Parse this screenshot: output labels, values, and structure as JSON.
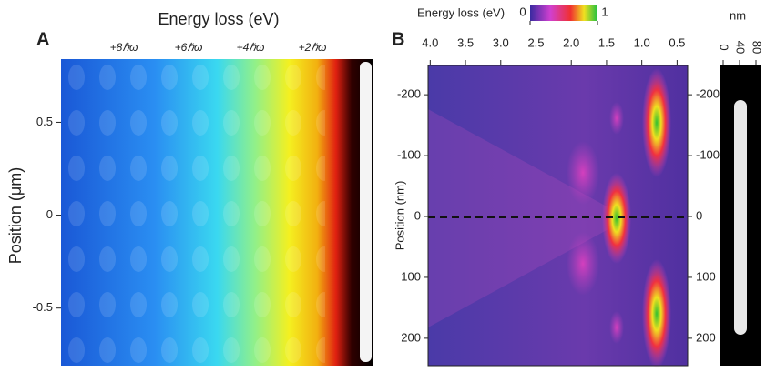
{
  "panels": [
    {
      "label": "A",
      "x_title": "Energy loss (eV)",
      "annotations": [
        "+8ℏω",
        "+6ℏω",
        "+4ℏω",
        "+2ℏω"
      ],
      "y_title": "Position (μm)",
      "ylim": [
        -0.81,
        0.84
      ],
      "yticks": [
        0.5,
        0,
        -0.5
      ]
    },
    {
      "label": "B",
      "x_title": "Energy loss (eV)",
      "xlim": [
        4.03,
        0.35
      ],
      "xticks": [
        {
          "value": 4,
          "label": "4.0"
        },
        3.5,
        {
          "value": 3,
          "label": "3.0"
        },
        2.5,
        {
          "value": 2,
          "label": "2.0"
        },
        1.5,
        {
          "value": 1,
          "label": "1.0"
        },
        0.5
      ],
      "y_title": "Position (nm)",
      "ylim": [
        -248,
        245
      ],
      "yticks": [
        -200,
        -100,
        0,
        100,
        200
      ],
      "colorbar": {
        "ticks": [
          0,
          1
        ]
      },
      "scale": {
        "unit": "nm",
        "ticks": [
          0,
          40,
          80
        ]
      }
    }
  ]
}
